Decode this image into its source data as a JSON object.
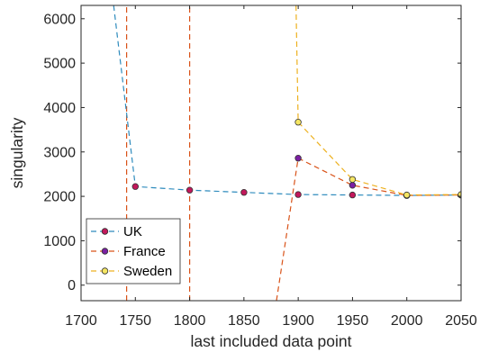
{
  "chart_data": {
    "type": "line",
    "xlabel": "last included data point",
    "ylabel": "singularity",
    "xlim": [
      1700,
      2050
    ],
    "ylim": [
      -350,
      6300
    ],
    "x_ticks": [
      1700,
      1750,
      1800,
      1850,
      1900,
      1950,
      2000,
      2050
    ],
    "y_ticks": [
      0,
      1000,
      2000,
      3000,
      4000,
      5000,
      6000
    ],
    "grid": false,
    "legend_position": "bottom-left",
    "series": [
      {
        "name": "UK",
        "line_color": "#2e8bbd",
        "marker_color": "#c2185b",
        "points": [
          [
            1730,
            6300
          ],
          [
            1750,
            2220
          ],
          [
            1800,
            2140
          ],
          [
            1850,
            2090
          ],
          [
            1900,
            2040
          ],
          [
            1950,
            2030
          ],
          [
            2000,
            2020
          ],
          [
            2050,
            2030
          ]
        ],
        "markers": [
          [
            1750,
            2220
          ],
          [
            1800,
            2140
          ],
          [
            1850,
            2090
          ],
          [
            1900,
            2040
          ],
          [
            1950,
            2030
          ],
          [
            2000,
            2020
          ],
          [
            2050,
            2030
          ]
        ]
      },
      {
        "name": "France",
        "line_color": "#d95319",
        "marker_color": "#7b1fa2",
        "points": [
          [
            1880,
            -350
          ],
          [
            1900,
            2860
          ],
          [
            1950,
            2250
          ],
          [
            2000,
            2020
          ],
          [
            2050,
            2030
          ]
        ],
        "markers": [
          [
            1900,
            2860
          ],
          [
            1950,
            2250
          ],
          [
            2000,
            2020
          ],
          [
            2050,
            2030
          ]
        ]
      },
      {
        "name": "Sweden",
        "line_color": "#edb120",
        "marker_color": "#f5e663",
        "points": [
          [
            1898,
            6300
          ],
          [
            1900,
            3670
          ],
          [
            1950,
            2380
          ],
          [
            2000,
            2030
          ],
          [
            2050,
            2040
          ]
        ],
        "markers": [
          [
            1900,
            3670
          ],
          [
            1950,
            2380
          ],
          [
            2000,
            2030
          ],
          [
            2050,
            2040
          ]
        ]
      }
    ],
    "extra_lines": [
      {
        "color": "#d95319",
        "points": [
          [
            1742,
            -350
          ],
          [
            1742,
            6300
          ]
        ]
      },
      {
        "color": "#d95319",
        "points": [
          [
            1800,
            -350
          ],
          [
            1800,
            6300
          ]
        ]
      }
    ]
  }
}
